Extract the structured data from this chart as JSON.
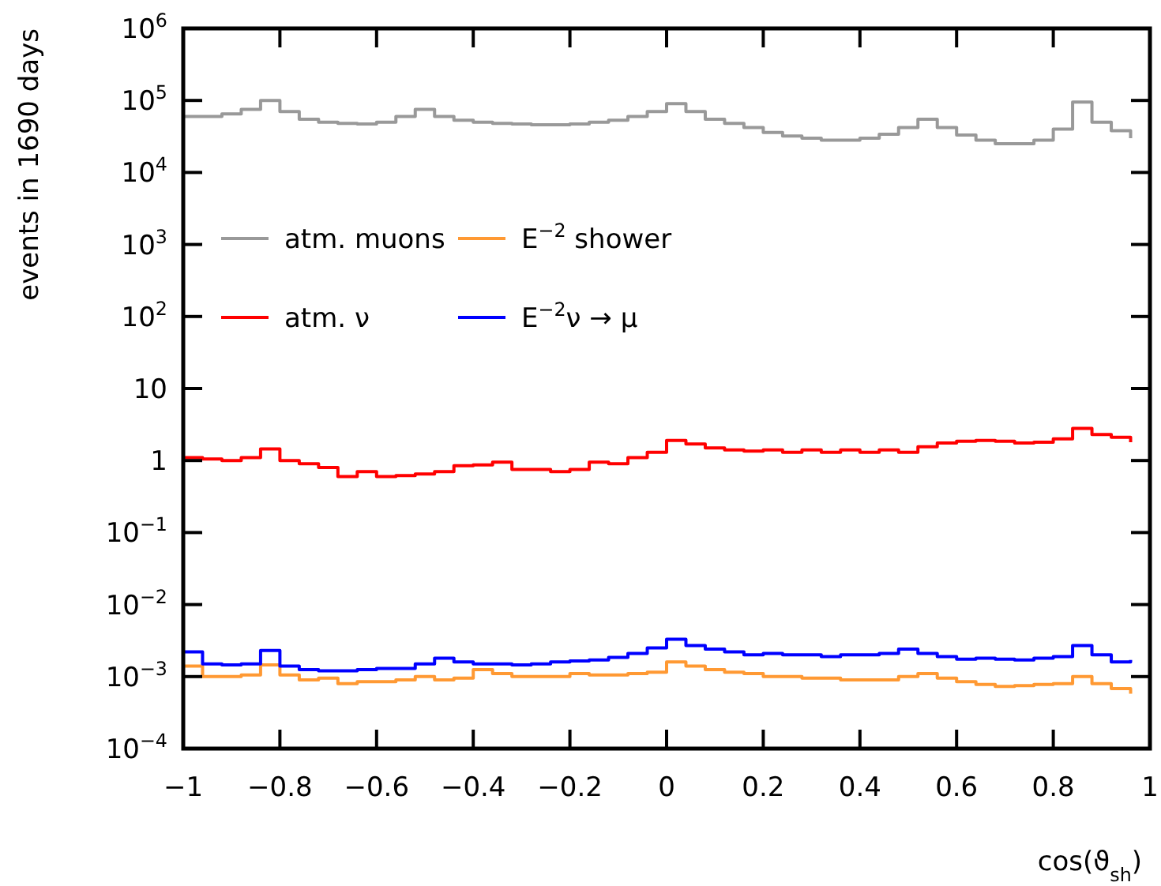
{
  "chart_data": {
    "type": "step",
    "xlabel": "cos(ϑ$_{sh}$)",
    "ylabel": "events in 1690 days",
    "log": "y",
    "legend": "top left",
    "grid": false,
    "xlim": [
      -1,
      1
    ],
    "xticks": [
      {
        "value": -1,
        "label": "−1"
      },
      {
        "value": -0.8,
        "label": "−0.8"
      },
      {
        "value": -0.6,
        "label": "−0.6"
      },
      {
        "value": -0.4,
        "label": "−0.4"
      },
      {
        "value": -0.2,
        "label": "−0.2"
      },
      0,
      0.2,
      0.4,
      0.6,
      0.8,
      1
    ],
    "ylim": [
      0.0001,
      1000000
    ],
    "yticks": [
      {
        "value": 0.0001,
        "label": "10$^{−4}$"
      },
      {
        "value": 0.001,
        "label": "10$^{−3}$"
      },
      {
        "value": 0.01,
        "label": "10$^{−2}$"
      },
      {
        "value": 0.1,
        "label": "10$^{−1}$"
      },
      1,
      10,
      {
        "value": 100,
        "label": "10$^{2}$"
      },
      {
        "value": 1000,
        "label": "10$^{3}$"
      },
      {
        "value": 10000,
        "label": "10$^{4}$"
      },
      {
        "value": 100000,
        "label": "10$^{5}$"
      },
      {
        "value": 1000000,
        "label": "10$^{6}$"
      }
    ],
    "x": [
      -1,
      -0.96,
      -0.92,
      -0.88,
      -0.84,
      -0.8,
      -0.76,
      -0.72,
      -0.68,
      -0.64,
      -0.6,
      -0.56,
      -0.52,
      -0.48,
      -0.44,
      -0.4,
      -0.36,
      -0.32,
      -0.28,
      -0.24,
      -0.2,
      -0.16,
      -0.12,
      -0.08,
      -0.04,
      0,
      0.04,
      0.08,
      0.12,
      0.16,
      0.2,
      0.24,
      0.28,
      0.32,
      0.36,
      0.4,
      0.44,
      0.48,
      0.52,
      0.56,
      0.6,
      0.64,
      0.68,
      0.72,
      0.76,
      0.8,
      0.84,
      0.88,
      0.92,
      0.96
    ],
    "series": [
      {
        "name": "atm. muons",
        "color": "#999999",
        "values": [
          60000,
          60000,
          65000,
          75000,
          100000,
          70000,
          55000,
          50000,
          48000,
          47000,
          50000,
          60000,
          75000,
          60000,
          53000,
          50000,
          48000,
          47000,
          46000,
          46000,
          47000,
          50000,
          53000,
          60000,
          70000,
          90000,
          70000,
          55000,
          48000,
          42000,
          36000,
          32000,
          30000,
          28000,
          28000,
          30000,
          34000,
          42000,
          55000,
          42000,
          33000,
          28000,
          25000,
          25000,
          28000,
          40000,
          95000,
          50000,
          38000,
          30000
        ]
      },
      {
        "name": "E$^{−2}$ shower",
        "color": "#ff9933",
        "values": [
          0.0014,
          0.001,
          0.001,
          0.00105,
          0.00145,
          0.00105,
          0.0009,
          0.00095,
          0.0008,
          0.00085,
          0.00085,
          0.0009,
          0.001,
          0.0009,
          0.00095,
          0.00125,
          0.0011,
          0.001,
          0.001,
          0.001,
          0.0011,
          0.00105,
          0.00105,
          0.0011,
          0.00115,
          0.0016,
          0.0014,
          0.00125,
          0.00115,
          0.0011,
          0.001,
          0.001,
          0.00095,
          0.00095,
          0.0009,
          0.0009,
          0.0009,
          0.001,
          0.0011,
          0.00095,
          0.00085,
          0.00078,
          0.00073,
          0.00075,
          0.00078,
          0.0008,
          0.001,
          0.0008,
          0.00068,
          0.00058
        ]
      },
      {
        "name": "atm. ν",
        "color": "#ff0000",
        "values": [
          1.1,
          1.05,
          1.0,
          1.1,
          1.45,
          1.0,
          0.9,
          0.8,
          0.6,
          0.7,
          0.6,
          0.62,
          0.65,
          0.7,
          0.85,
          0.87,
          0.95,
          0.75,
          0.75,
          0.7,
          0.75,
          0.95,
          0.9,
          1.1,
          1.3,
          1.9,
          1.7,
          1.5,
          1.4,
          1.35,
          1.4,
          1.3,
          1.4,
          1.3,
          1.4,
          1.3,
          1.4,
          1.3,
          1.55,
          1.75,
          1.85,
          1.9,
          1.85,
          1.75,
          1.8,
          2.0,
          2.8,
          2.3,
          2.1,
          1.8
        ]
      },
      {
        "name": "E$^{−2}$ν → μ",
        "color": "#0000ff",
        "values": [
          0.0022,
          0.0015,
          0.00145,
          0.0015,
          0.0023,
          0.0014,
          0.00125,
          0.0012,
          0.0012,
          0.00125,
          0.0013,
          0.0013,
          0.0015,
          0.0018,
          0.0016,
          0.0015,
          0.0015,
          0.00145,
          0.0015,
          0.0016,
          0.00165,
          0.0017,
          0.00185,
          0.0021,
          0.0025,
          0.0033,
          0.0027,
          0.0024,
          0.0022,
          0.002,
          0.0021,
          0.002,
          0.002,
          0.0019,
          0.002,
          0.002,
          0.0021,
          0.0024,
          0.0021,
          0.0019,
          0.00175,
          0.0018,
          0.00175,
          0.0017,
          0.0018,
          0.0019,
          0.0027,
          0.002,
          0.0016,
          0.0017
        ]
      }
    ]
  }
}
